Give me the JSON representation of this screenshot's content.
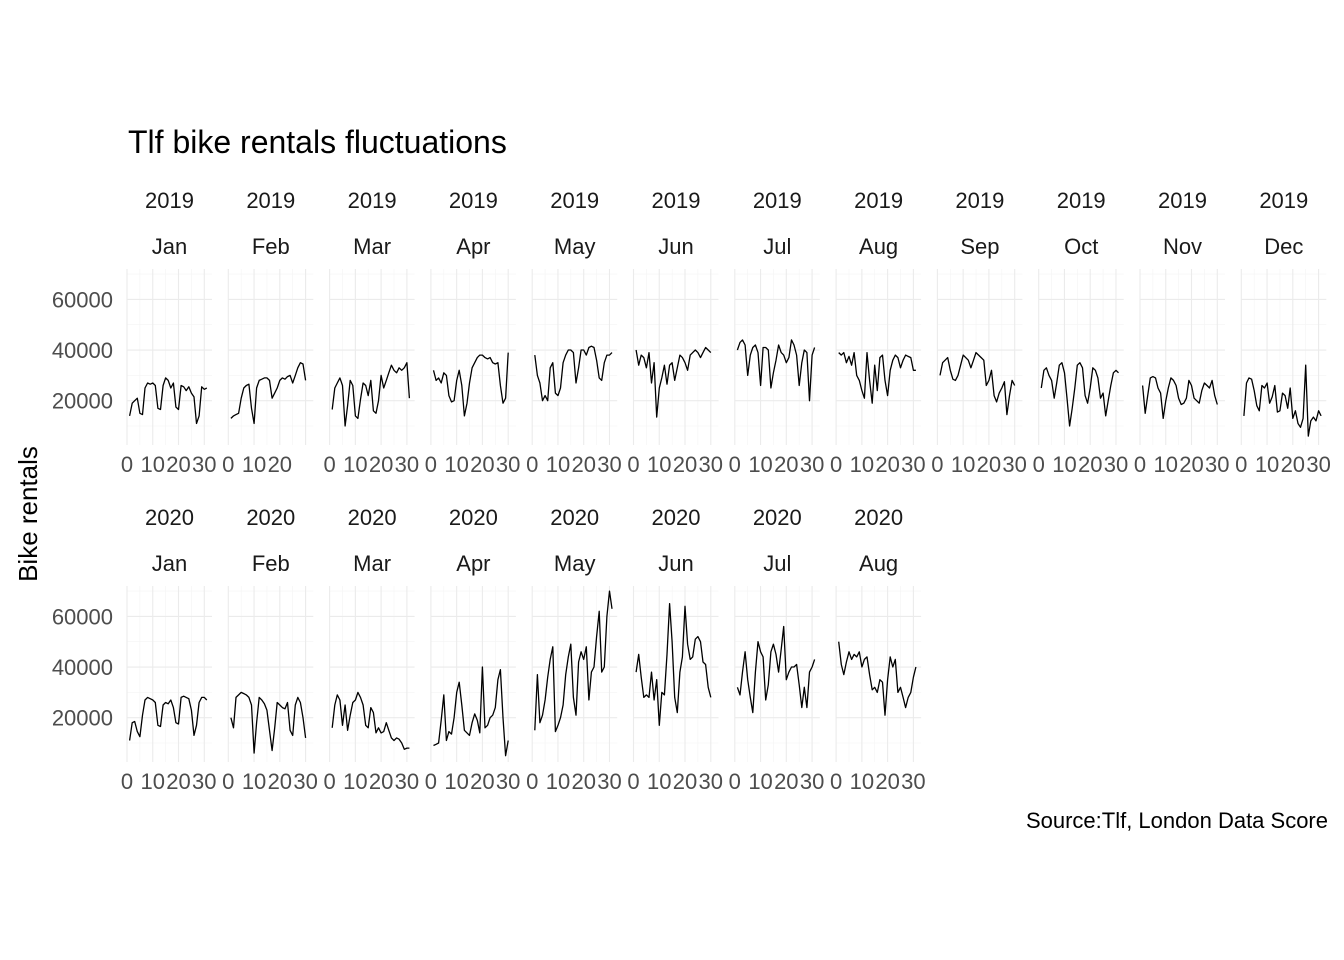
{
  "chart_data": {
    "type": "line",
    "title": "Tlf bike rentals fluctuations",
    "ylabel": "Bike rentals",
    "xlabel": "",
    "caption": "Source:Tlf, London Data Score",
    "ylim": [
      2500,
      72000
    ],
    "xlim": [
      0,
      33
    ],
    "y_ticks": [
      20000,
      40000,
      60000
    ],
    "x_ticks": [
      0,
      10,
      20,
      30
    ],
    "grid": true,
    "facets": [
      {
        "year": "2019",
        "month": "Jan",
        "x_tick_labels": [
          "0",
          "10",
          "20",
          "30"
        ],
        "values": [
          14000,
          19000,
          20000,
          21000,
          15000,
          14500,
          25000,
          27000,
          26500,
          27000,
          26000,
          17000,
          16500,
          26000,
          29000,
          28000,
          25000,
          27000,
          17500,
          16500,
          26000,
          25500,
          24000,
          25500,
          23000,
          21500,
          11000,
          14000,
          25500,
          24500,
          25000
        ]
      },
      {
        "year": "2019",
        "month": "Feb",
        "x_tick_labels": [
          "0",
          "10",
          "20",
          ""
        ],
        "values": [
          13000,
          14000,
          14500,
          15000,
          21000,
          25000,
          26000,
          26500,
          17000,
          11000,
          25000,
          28000,
          28500,
          29000,
          29000,
          28000,
          21000,
          23000,
          25000,
          28000,
          29000,
          28500,
          29500,
          30000,
          27000,
          30000,
          33000,
          35000,
          34500,
          28000
        ]
      },
      {
        "year": "2019",
        "month": "Mar",
        "x_tick_labels": [
          "0",
          "10",
          "20",
          "30"
        ],
        "values": [
          16500,
          25000,
          27000,
          29000,
          26000,
          10000,
          18000,
          28000,
          26000,
          14000,
          13000,
          20500,
          27000,
          26000,
          22000,
          28000,
          16000,
          15000,
          20000,
          30000,
          25000,
          28000,
          31000,
          34000,
          32000,
          31000,
          33000,
          32000,
          33000,
          35000,
          21000
        ]
      },
      {
        "year": "2019",
        "month": "Apr",
        "x_tick_labels": [
          "0",
          "10",
          "20",
          "30"
        ],
        "values": [
          32000,
          28000,
          29000,
          27000,
          31000,
          30000,
          22000,
          19500,
          20000,
          28000,
          32000,
          26000,
          14000,
          19000,
          27000,
          33000,
          35000,
          37000,
          38000,
          38000,
          37000,
          36500,
          37000,
          35000,
          34500,
          35000,
          26000,
          19000,
          21000,
          39000
        ]
      },
      {
        "year": "2019",
        "month": "May",
        "x_tick_labels": [
          "0",
          "10",
          "20",
          "30"
        ],
        "values": [
          38000,
          30000,
          27000,
          20000,
          22000,
          20000,
          33000,
          35000,
          23000,
          22000,
          25000,
          35000,
          38000,
          40000,
          40000,
          39000,
          27000,
          33000,
          40000,
          40000,
          38000,
          41000,
          41500,
          41000,
          36000,
          29000,
          28000,
          35000,
          38000,
          38000,
          39000
        ]
      },
      {
        "year": "2019",
        "month": "Jun",
        "x_tick_labels": [
          "0",
          "10",
          "20",
          "30"
        ],
        "values": [
          40000,
          34000,
          38000,
          37000,
          33000,
          39000,
          27000,
          35000,
          13500,
          25000,
          29000,
          34000,
          26500,
          34000,
          35000,
          28000,
          33000,
          38000,
          37000,
          35000,
          32000,
          38000,
          39000,
          40000,
          39000,
          37000,
          39000,
          41000,
          40000,
          39000
        ]
      },
      {
        "year": "2019",
        "month": "Jul",
        "x_tick_labels": [
          "0",
          "10",
          "20",
          "30"
        ],
        "values": [
          40000,
          43000,
          44000,
          42000,
          30000,
          38000,
          41000,
          42000,
          39000,
          26000,
          41000,
          41000,
          40000,
          25000,
          31000,
          36000,
          42000,
          39000,
          38000,
          35000,
          37000,
          44000,
          42000,
          38000,
          26000,
          35000,
          40000,
          39000,
          20000,
          38000,
          41000
        ]
      },
      {
        "year": "2019",
        "month": "Aug",
        "x_tick_labels": [
          "0",
          "10",
          "20",
          "30"
        ],
        "values": [
          39000,
          38000,
          39000,
          35000,
          37500,
          34000,
          39000,
          30000,
          28000,
          24000,
          21000,
          39000,
          28000,
          19000,
          34000,
          24000,
          37000,
          38000,
          28000,
          22000,
          32000,
          36000,
          38000,
          37000,
          33000,
          36000,
          38000,
          37500,
          37000,
          32000,
          32000
        ]
      },
      {
        "year": "2019",
        "month": "Sep",
        "x_tick_labels": [
          "0",
          "10",
          "20",
          "30"
        ],
        "values": [
          30000,
          35000,
          36000,
          37000,
          32000,
          28500,
          28000,
          30000,
          34000,
          38000,
          37000,
          36000,
          33000,
          36000,
          39000,
          38000,
          37000,
          36000,
          26000,
          28000,
          32000,
          22000,
          19500,
          23000,
          25000,
          27500,
          14500,
          22000,
          28000,
          26000
        ]
      },
      {
        "year": "2019",
        "month": "Oct",
        "x_tick_labels": [
          "0",
          "10",
          "20",
          "30"
        ],
        "values": [
          25000,
          32000,
          33000,
          30000,
          28000,
          21000,
          27000,
          34000,
          35000,
          31000,
          21000,
          10000,
          17000,
          25000,
          34000,
          35000,
          33000,
          22000,
          19000,
          25000,
          33000,
          32000,
          29000,
          21000,
          23000,
          14000,
          20000,
          26000,
          31000,
          32000,
          31000
        ]
      },
      {
        "year": "2019",
        "month": "Nov",
        "x_tick_labels": [
          "0",
          "10",
          "20",
          "30"
        ],
        "values": [
          26000,
          15000,
          22000,
          29000,
          29500,
          29000,
          25000,
          23000,
          13000,
          20000,
          25000,
          29000,
          28000,
          26000,
          21000,
          18500,
          19000,
          21000,
          28000,
          26000,
          21000,
          20000,
          19000,
          24000,
          27000,
          26000,
          25000,
          28000,
          22000,
          18500
        ]
      },
      {
        "year": "2019",
        "month": "Dec",
        "x_tick_labels": [
          "0",
          "10",
          "20",
          "30"
        ],
        "values": [
          14000,
          27000,
          29000,
          28500,
          24000,
          18000,
          16000,
          26000,
          25000,
          27000,
          19000,
          21500,
          26000,
          15500,
          16000,
          23000,
          22000,
          17000,
          25000,
          13000,
          16000,
          11000,
          9500,
          13000,
          34000,
          6000,
          12000,
          13500,
          12000,
          16000,
          14000
        ]
      },
      {
        "year": "2020",
        "month": "Jan",
        "x_tick_labels": [
          "0",
          "10",
          "20",
          "30"
        ],
        "values": [
          11000,
          18000,
          18500,
          14500,
          12500,
          21000,
          27000,
          28000,
          27500,
          27000,
          26000,
          17000,
          16500,
          25000,
          26000,
          25500,
          27000,
          24000,
          18000,
          17500,
          28000,
          28500,
          28000,
          27500,
          23000,
          13000,
          17000,
          26000,
          28000,
          28000,
          27000
        ]
      },
      {
        "year": "2020",
        "month": "Feb",
        "x_tick_labels": [
          "0",
          "10",
          "20",
          "30"
        ],
        "values": [
          20000,
          16000,
          28000,
          29000,
          30000,
          29500,
          29000,
          28000,
          25000,
          6000,
          18000,
          28000,
          27000,
          25500,
          23000,
          15000,
          7000,
          16000,
          26000,
          25000,
          24000,
          23500,
          26000,
          15000,
          13000,
          25000,
          28000,
          26000,
          20000,
          12000
        ]
      },
      {
        "year": "2020",
        "month": "Mar",
        "x_tick_labels": [
          "0",
          "10",
          "20",
          "30"
        ],
        "values": [
          16000,
          25000,
          29000,
          27000,
          17000,
          25000,
          15000,
          21000,
          26000,
          27000,
          30000,
          28000,
          25000,
          17000,
          16000,
          24000,
          22000,
          14000,
          16000,
          14000,
          14500,
          18000,
          15000,
          12000,
          11000,
          12000,
          11500,
          10000,
          7500,
          8000,
          8000
        ]
      },
      {
        "year": "2020",
        "month": "Apr",
        "x_tick_labels": [
          "0",
          "10",
          "20",
          "30"
        ],
        "values": [
          9000,
          9500,
          10000,
          19000,
          29000,
          11000,
          14500,
          13500,
          20000,
          30000,
          34000,
          25000,
          15000,
          14000,
          13000,
          18000,
          21500,
          19000,
          14000,
          40000,
          16000,
          17000,
          20000,
          21000,
          24000,
          35000,
          39000,
          20000,
          5000,
          11000
        ]
      },
      {
        "year": "2020",
        "month": "May",
        "x_tick_labels": [
          "0",
          "10",
          "20",
          "30"
        ],
        "values": [
          15000,
          37000,
          18000,
          21000,
          27000,
          36000,
          43000,
          48000,
          14500,
          17000,
          20000,
          25000,
          37000,
          44000,
          49000,
          28000,
          21000,
          42000,
          46000,
          43000,
          48000,
          27000,
          38000,
          40000,
          52000,
          62000,
          38000,
          40000,
          60000,
          70000,
          63000
        ]
      },
      {
        "year": "2020",
        "month": "Jun",
        "x_tick_labels": [
          "0",
          "10",
          "20",
          "30"
        ],
        "values": [
          38000,
          45000,
          36000,
          28000,
          29000,
          28000,
          38000,
          27000,
          35000,
          17000,
          30000,
          29000,
          45000,
          65000,
          50000,
          28000,
          22000,
          38000,
          44000,
          64000,
          49000,
          43000,
          44000,
          51000,
          52000,
          50000,
          42000,
          41000,
          32000,
          28000
        ]
      },
      {
        "year": "2020",
        "month": "Jul",
        "x_tick_labels": [
          "0",
          "10",
          "20",
          "30"
        ],
        "values": [
          32000,
          29000,
          38000,
          46000,
          35000,
          28000,
          22000,
          38000,
          50000,
          46000,
          44000,
          27000,
          33000,
          46000,
          49000,
          45000,
          38000,
          47000,
          56000,
          35000,
          38000,
          40000,
          40000,
          41000,
          33000,
          24000,
          32000,
          24000,
          38000,
          40000,
          43000
        ]
      },
      {
        "year": "2020",
        "month": "Aug",
        "x_tick_labels": [
          "0",
          "10",
          "20",
          "30"
        ],
        "values": [
          50000,
          41000,
          37000,
          42000,
          46000,
          43000,
          45000,
          44000,
          46000,
          40000,
          43000,
          44000,
          37000,
          31000,
          32000,
          30000,
          35000,
          34000,
          21000,
          35000,
          44000,
          40000,
          43000,
          30000,
          32000,
          28000,
          24000,
          28000,
          30000,
          36000,
          40000
        ]
      }
    ]
  }
}
